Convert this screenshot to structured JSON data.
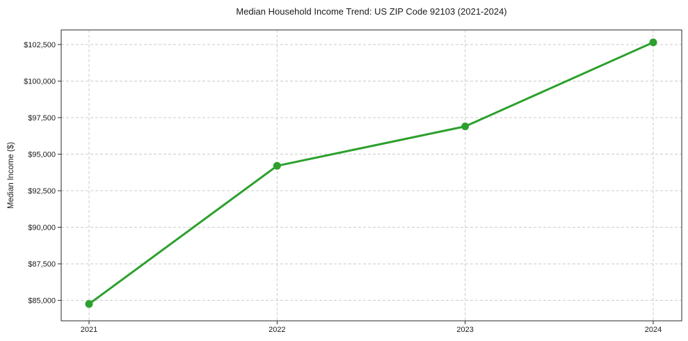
{
  "chart_data": {
    "type": "line",
    "title": "Median Household Income Trend: US ZIP Code 92103 (2021-2024)",
    "xlabel": "",
    "ylabel": "Median Income ($)",
    "categories": [
      "2021",
      "2022",
      "2023",
      "2024"
    ],
    "series": [
      {
        "name": "Median Household Income",
        "values": [
          84750,
          94200,
          96900,
          102650
        ]
      }
    ],
    "yticks": [
      85000,
      87500,
      90000,
      92500,
      95000,
      97500,
      100000,
      102500
    ],
    "ytick_labels": [
      "$85,000",
      "$87,500",
      "$90,000",
      "$92,500",
      "$95,000",
      "$97,500",
      "$100,000",
      "$102,500"
    ],
    "ylim": [
      83600,
      103500
    ],
    "grid": "dashed both axes",
    "legend_position": "none",
    "colors": {
      "line": "#2ca02c",
      "marker": "#2ca02c",
      "grid": "#c9c9c9",
      "frame": "#262626",
      "text": "#1a1a1a",
      "background": "#ffffff"
    },
    "marker_style": "filled circle",
    "value_prefix": "$"
  }
}
